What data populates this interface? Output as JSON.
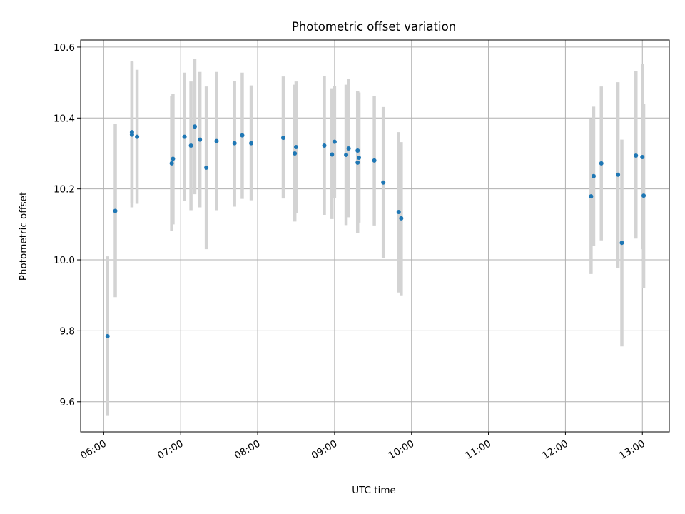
{
  "chart_data": {
    "type": "scatter",
    "title": "Photometric offset variation",
    "xlabel": "UTC time",
    "ylabel": "Photometric offset",
    "xlim": [
      "05:42",
      "13:21"
    ],
    "ylim": [
      9.515,
      10.62
    ],
    "x_ticks": [
      "06:00",
      "07:00",
      "08:00",
      "09:00",
      "10:00",
      "11:00",
      "12:00",
      "13:00"
    ],
    "y_ticks": [
      9.6,
      9.8,
      10.0,
      10.2,
      10.4,
      10.6
    ],
    "y_tick_labels": [
      "9.6",
      "9.8",
      "10.0",
      "10.2",
      "10.4",
      "10.6"
    ],
    "grid": true,
    "colors": {
      "point": "#1f77b4",
      "errorbar": "#d3d3d3",
      "grid": "#b0b0b0"
    },
    "points": [
      {
        "x": "06:03",
        "y": 9.785,
        "low": 9.56,
        "high": 10.01
      },
      {
        "x": "06:09",
        "y": 10.138,
        "low": 9.895,
        "high": 10.383
      },
      {
        "x": "06:22",
        "y": 10.36,
        "low": 10.16,
        "high": 10.56
      },
      {
        "x": "06:22",
        "y": 10.353,
        "low": 10.148,
        "high": 10.558
      },
      {
        "x": "06:26",
        "y": 10.347,
        "low": 10.158,
        "high": 10.536
      },
      {
        "x": "06:53",
        "y": 10.272,
        "low": 10.082,
        "high": 10.462
      },
      {
        "x": "06:54",
        "y": 10.285,
        "low": 10.1,
        "high": 10.467
      },
      {
        "x": "07:03",
        "y": 10.347,
        "low": 10.165,
        "high": 10.528
      },
      {
        "x": "07:08",
        "y": 10.322,
        "low": 10.14,
        "high": 10.503
      },
      {
        "x": "07:11",
        "y": 10.376,
        "low": 10.185,
        "high": 10.567
      },
      {
        "x": "07:15",
        "y": 10.339,
        "low": 10.148,
        "high": 10.53
      },
      {
        "x": "07:20",
        "y": 10.26,
        "low": 10.03,
        "high": 10.489
      },
      {
        "x": "07:28",
        "y": 10.335,
        "low": 10.14,
        "high": 10.53
      },
      {
        "x": "07:42",
        "y": 10.329,
        "low": 10.15,
        "high": 10.505
      },
      {
        "x": "07:48",
        "y": 10.351,
        "low": 10.172,
        "high": 10.528
      },
      {
        "x": "07:55",
        "y": 10.329,
        "low": 10.168,
        "high": 10.492
      },
      {
        "x": "08:20",
        "y": 10.344,
        "low": 10.173,
        "high": 10.517
      },
      {
        "x": "08:29",
        "y": 10.3,
        "low": 10.108,
        "high": 10.494
      },
      {
        "x": "08:30",
        "y": 10.318,
        "low": 10.133,
        "high": 10.503
      },
      {
        "x": "08:52",
        "y": 10.322,
        "low": 10.127,
        "high": 10.519
      },
      {
        "x": "08:58",
        "y": 10.297,
        "low": 10.115,
        "high": 10.484
      },
      {
        "x": "09:00",
        "y": 10.333,
        "low": 10.175,
        "high": 10.49
      },
      {
        "x": "09:09",
        "y": 10.296,
        "low": 10.098,
        "high": 10.494
      },
      {
        "x": "09:11",
        "y": 10.314,
        "low": 10.12,
        "high": 10.51
      },
      {
        "x": "09:18",
        "y": 10.308,
        "low": 10.14,
        "high": 10.476
      },
      {
        "x": "09:18",
        "y": 10.274,
        "low": 10.075,
        "high": 10.473
      },
      {
        "x": "09:19",
        "y": 10.288,
        "low": 10.105,
        "high": 10.472
      },
      {
        "x": "09:31",
        "y": 10.28,
        "low": 10.097,
        "high": 10.463
      },
      {
        "x": "09:38",
        "y": 10.218,
        "low": 10.005,
        "high": 10.431
      },
      {
        "x": "09:50",
        "y": 10.135,
        "low": 9.908,
        "high": 10.36
      },
      {
        "x": "09:52",
        "y": 10.117,
        "low": 9.9,
        "high": 10.332
      },
      {
        "x": "12:20",
        "y": 10.179,
        "low": 9.96,
        "high": 10.398
      },
      {
        "x": "12:22",
        "y": 10.236,
        "low": 10.04,
        "high": 10.432
      },
      {
        "x": "12:28",
        "y": 10.272,
        "low": 10.055,
        "high": 10.489
      },
      {
        "x": "12:41",
        "y": 10.24,
        "low": 9.978,
        "high": 10.501
      },
      {
        "x": "12:44",
        "y": 10.048,
        "low": 9.756,
        "high": 10.339
      },
      {
        "x": "12:55",
        "y": 10.294,
        "low": 10.06,
        "high": 10.532
      },
      {
        "x": "13:00",
        "y": 10.29,
        "low": 10.03,
        "high": 10.552
      },
      {
        "x": "13:01",
        "y": 10.181,
        "low": 9.921,
        "high": 10.44
      }
    ]
  }
}
